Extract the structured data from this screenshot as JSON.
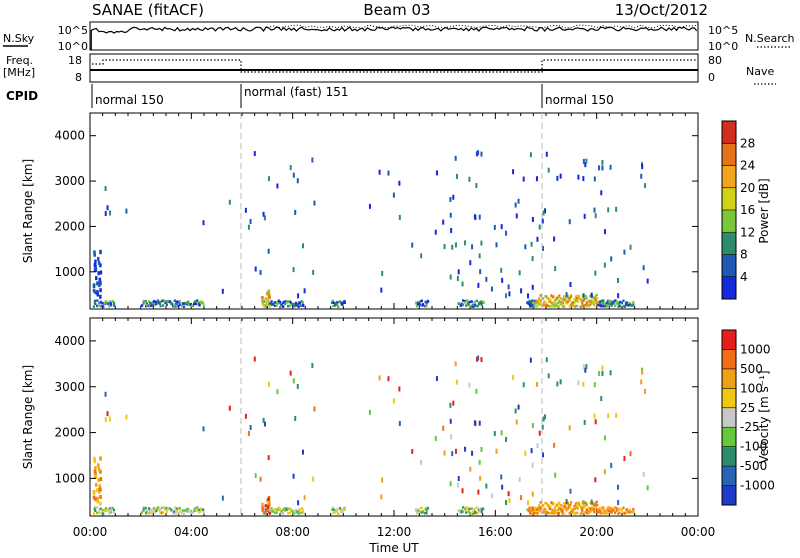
{
  "header": {
    "title_left": "SANAE (fitACF)",
    "title_center": "Beam 03",
    "title_right": "13/Oct/2012"
  },
  "top_panels": {
    "nsky_label": "N.Sky",
    "nsky_ticks": [
      "10^5",
      "10^0"
    ],
    "nsearch_ticks": [
      "10^5",
      "10^0"
    ],
    "nsearch_label": "N.Search",
    "freq_label": "Freq.",
    "freq_unit": "[MHz]",
    "freq_ticks": [
      "18",
      "8"
    ],
    "nave_ticks": [
      "80",
      "0"
    ],
    "nave_label": "Nave",
    "cpid_label": "CPID",
    "cpid_segments": [
      {
        "label": "normal 150",
        "start_hour": 0
      },
      {
        "label": "normal (fast) 151",
        "start_hour": 6
      },
      {
        "label": "normal 150",
        "start_hour": 18
      }
    ]
  },
  "chart_data": [
    {
      "type": "heatmap",
      "panel": "power",
      "ylabel": "Slant Range [km]",
      "y_ticks": [
        "1000",
        "2000",
        "3000",
        "4000"
      ],
      "ylim": [
        180,
        4500
      ],
      "xlim_hours": [
        0,
        24
      ],
      "colorbar_label": "Power [dB]",
      "colorbar_ticks": [
        "4",
        "8",
        "12",
        "16",
        "20",
        "24",
        "28"
      ],
      "colorbar_colors": [
        "#1428dc",
        "#1e5ab4",
        "#2e8c6e",
        "#7ac83a",
        "#d2d214",
        "#f0a51e",
        "#e67319",
        "#d22d1e"
      ]
    },
    {
      "type": "heatmap",
      "panel": "velocity",
      "ylabel": "Slant Range [km]",
      "y_ticks": [
        "1000",
        "2000",
        "3000",
        "4000"
      ],
      "ylim": [
        180,
        4500
      ],
      "xlim_hours": [
        0,
        24
      ],
      "xlabel": "Time UT",
      "x_ticks": [
        "00:00",
        "04:00",
        "08:00",
        "12:00",
        "16:00",
        "20:00",
        "00:00"
      ],
      "colorbar_label": "Velocity [m s⁻¹]",
      "colorbar_ticks": [
        "1000",
        "500",
        "100",
        "25",
        "-25",
        "-100",
        "-500",
        "-1000"
      ],
      "colorbar_colors": [
        "#1e3cc8",
        "#2864b4",
        "#2e8c6e",
        "#64c83c",
        "#c8c8c8",
        "#f0c814",
        "#f0a014",
        "#f06e14",
        "#e61e1e"
      ]
    }
  ],
  "scatter_seed": 20121013
}
